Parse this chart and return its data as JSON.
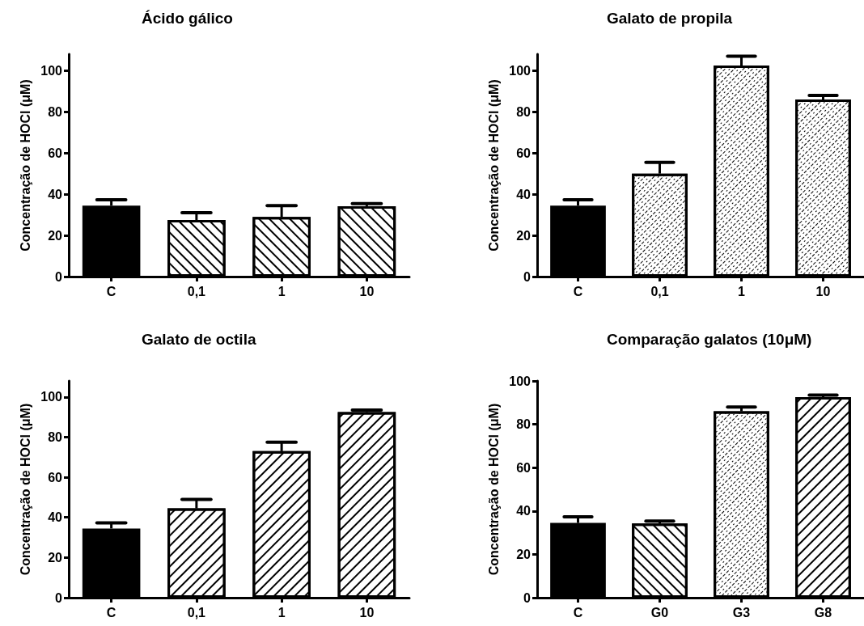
{
  "chart_data": [
    {
      "type": "bar",
      "title": "Ácido gálico",
      "ylabel": "Concentração de HOCl (μM)",
      "categories": [
        "C",
        "0,1",
        "1",
        "10"
      ],
      "values": [
        34.5,
        27.5,
        29,
        34.2
      ],
      "errors": [
        2.8,
        3.5,
        5.5,
        1.2
      ],
      "colors": [
        "#000000",
        "#ffffff",
        "#ffffff",
        "#ffffff"
      ],
      "ylim": [
        0,
        108
      ],
      "yticks": [
        0,
        20,
        40,
        60,
        80,
        100
      ],
      "grid": false
    },
    {
      "type": "bar",
      "title": "Galato de propila",
      "ylabel": "Concentração de HOCl (μM)",
      "categories": [
        "C",
        "0,1",
        "1",
        "10"
      ],
      "values": [
        34.5,
        50,
        102.5,
        86
      ],
      "errors": [
        2.8,
        5.5,
        4.5,
        2
      ],
      "colors": [
        "#000000",
        "#ffffff",
        "#ffffff",
        "#ffffff"
      ],
      "ylim": [
        0,
        108
      ],
      "yticks": [
        0,
        20,
        40,
        60,
        80,
        100
      ],
      "grid": false
    },
    {
      "type": "bar",
      "title": "Galato de octila",
      "ylabel": "Concentração de HOCl (μM)",
      "categories": [
        "C",
        "0,1",
        "1",
        "10"
      ],
      "values": [
        34.5,
        44.5,
        73,
        92.5
      ],
      "errors": [
        2.8,
        4.5,
        4.5,
        1
      ],
      "colors": [
        "#000000",
        "#ffffff",
        "#ffffff",
        "#ffffff"
      ],
      "ylim": [
        0,
        108
      ],
      "yticks": [
        0,
        20,
        40,
        60,
        80,
        100
      ],
      "grid": false
    },
    {
      "type": "bar",
      "title": "Comparação galatos (10μM)",
      "ylabel": "Concentração de HOCl (μM)",
      "categories": [
        "C",
        "G0",
        "G3",
        "G8"
      ],
      "values": [
        34.5,
        34.2,
        86,
        92.5
      ],
      "errors": [
        2.8,
        1.2,
        2,
        1
      ],
      "colors": [
        "#000000",
        "#ffffff",
        "#ffffff",
        "#ffffff"
      ],
      "ylim": [
        0,
        100
      ],
      "yticks": [
        0,
        20,
        40,
        60,
        80,
        100
      ],
      "grid": false
    }
  ]
}
